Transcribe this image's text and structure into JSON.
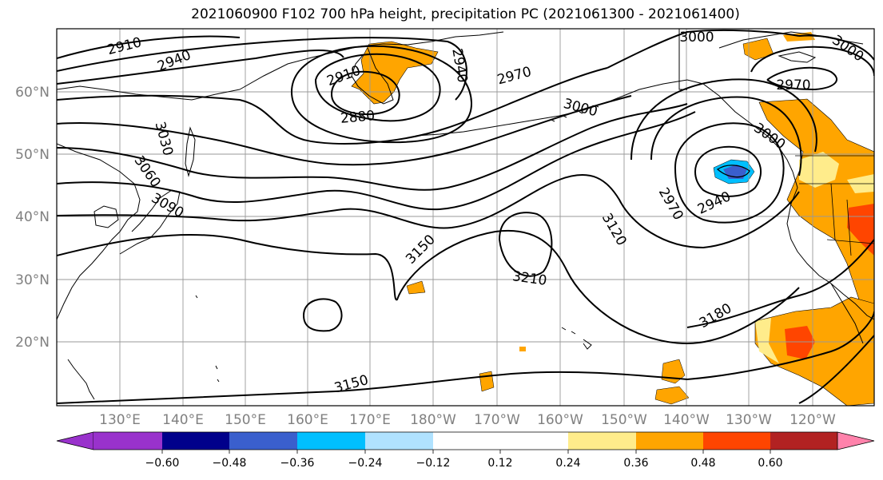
{
  "title": "2021060900 F102 700 hPa height, precipitation PC (2021061300 - 2021061400)",
  "latitude_labels": [
    "60°N",
    "50°N",
    "40°N",
    "30°N",
    "20°N"
  ],
  "longitude_labels": [
    "130°E",
    "140°E",
    "150°E",
    "160°E",
    "170°E",
    "180°W",
    "170°W",
    "160°W",
    "150°W",
    "140°W",
    "130°W",
    "120°W"
  ],
  "contour_labels": [
    {
      "text": "2910",
      "rot": -14
    },
    {
      "text": "2940",
      "rot": -22
    },
    {
      "text": "2910",
      "rot": -20
    },
    {
      "text": "2880",
      "rot": -5
    },
    {
      "text": "2940",
      "rot": 80
    },
    {
      "text": "2970",
      "rot": -15
    },
    {
      "text": "3000",
      "rot": 15
    },
    {
      "text": "3000",
      "rot": 0
    },
    {
      "text": "3000",
      "rot": 35
    },
    {
      "text": "2970",
      "rot": 0
    },
    {
      "text": "3000",
      "rot": 35
    },
    {
      "text": "3030",
      "rot": 75
    },
    {
      "text": "3060",
      "rot": 55
    },
    {
      "text": "3090",
      "rot": 30
    },
    {
      "text": "3150",
      "rot": -45
    },
    {
      "text": "3210",
      "rot": 8
    },
    {
      "text": "2970",
      "rot": 60
    },
    {
      "text": "2940",
      "rot": -25
    },
    {
      "text": "3120",
      "rot": 60
    },
    {
      "text": "3180",
      "rot": -30
    },
    {
      "text": "3150",
      "rot": -15
    }
  ],
  "colorbar": {
    "colors": [
      "#9932cc",
      "#00008b",
      "#3a5fcd",
      "#00bfff",
      "#b0e2ff",
      "#ffffff",
      "#ffffff",
      "#ffec8b",
      "#ffa500",
      "#ff4500",
      "#b22222",
      "#ff82ab"
    ],
    "tick_labels": [
      "−0.60",
      "−0.48",
      "−0.36",
      "−0.24",
      "−0.12",
      "0.12",
      "0.24",
      "0.36",
      "0.48",
      "0.60"
    ]
  }
}
